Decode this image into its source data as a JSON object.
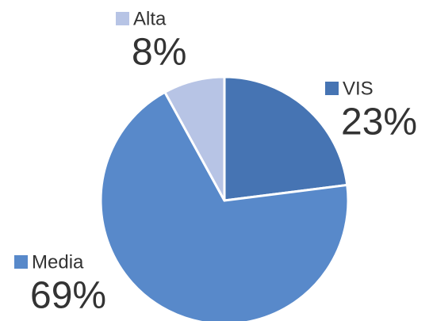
{
  "chart_data": {
    "type": "pie",
    "categories": [
      "VIS",
      "Media",
      "Alta"
    ],
    "values": [
      23,
      69,
      8
    ],
    "value_labels": [
      "23%",
      "69%",
      "8%"
    ],
    "colors": [
      "#4674b3",
      "#5889ca",
      "#b7c4e5"
    ]
  }
}
